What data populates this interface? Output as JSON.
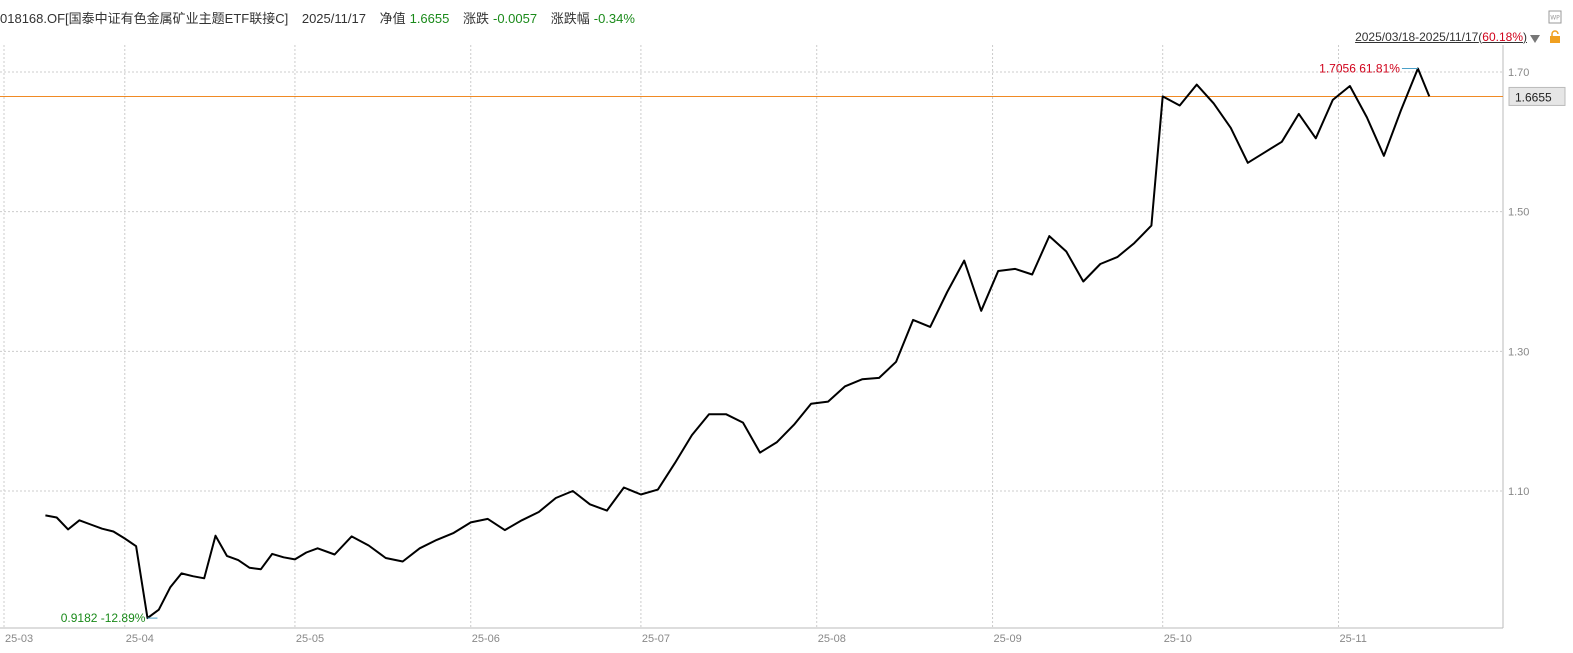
{
  "header": {
    "code_name": "018168.OF[国泰中证有色金属矿业主题ETF联接C]",
    "date": "2025/11/17",
    "nav_label": "净值",
    "nav_value": "1.6655",
    "change_label": "涨跌",
    "change_value": "-0.0057",
    "change_pct_label": "涨跌幅",
    "change_pct_value": "-0.34%"
  },
  "range": {
    "dates": "2025/03/18-2025/11/17",
    "pct_open": "(",
    "pct": "60.18%",
    "pct_close": ")"
  },
  "colors": {
    "line": "#000000",
    "ref_line": "#f08a24",
    "max_label": "#d0021b",
    "min_label": "#1a8a1a",
    "grid": "#cccccc"
  },
  "chart_data": {
    "type": "line",
    "x_tick_labels": [
      "25-03",
      "25-04",
      "25-05",
      "25-06",
      "25-07",
      "25-08",
      "25-09",
      "25-10",
      "25-11"
    ],
    "y_tick_labels": [
      "1.70",
      "1.50",
      "1.30",
      "1.10"
    ],
    "ylim": [
      0.9,
      1.75
    ],
    "current_value_label": "1.6655",
    "max_label": "1.7056 61.81%",
    "min_label": "0.9182 -12.89%",
    "grid": true,
    "series": [
      {
        "x": [
          "2025-03-18",
          "2025-03-20",
          "2025-03-22",
          "2025-03-24",
          "2025-03-26",
          "2025-03-28",
          "2025-03-30",
          "2025-04-01",
          "2025-04-03",
          "2025-04-05",
          "2025-04-07",
          "2025-04-09",
          "2025-04-11",
          "2025-04-13",
          "2025-04-15",
          "2025-04-17",
          "2025-04-19",
          "2025-04-21",
          "2025-04-23",
          "2025-04-25",
          "2025-04-27",
          "2025-04-29",
          "2025-05-01",
          "2025-05-03",
          "2025-05-05",
          "2025-05-08",
          "2025-05-11",
          "2025-05-14",
          "2025-05-17",
          "2025-05-20",
          "2025-05-23",
          "2025-05-26",
          "2025-05-29",
          "2025-06-01",
          "2025-06-04",
          "2025-06-07",
          "2025-06-10",
          "2025-06-13",
          "2025-06-16",
          "2025-06-19",
          "2025-06-22",
          "2025-06-25",
          "2025-06-28",
          "2025-07-01",
          "2025-07-04",
          "2025-07-07",
          "2025-07-10",
          "2025-07-13",
          "2025-07-16",
          "2025-07-19",
          "2025-07-22",
          "2025-07-25",
          "2025-07-28",
          "2025-07-31",
          "2025-08-03",
          "2025-08-06",
          "2025-08-09",
          "2025-08-12",
          "2025-08-15",
          "2025-08-18",
          "2025-08-21",
          "2025-08-24",
          "2025-08-27",
          "2025-08-30",
          "2025-09-02",
          "2025-09-05",
          "2025-09-08",
          "2025-09-11",
          "2025-09-14",
          "2025-09-17",
          "2025-09-20",
          "2025-09-23",
          "2025-09-26",
          "2025-09-29",
          "2025-10-01",
          "2025-10-04",
          "2025-10-07",
          "2025-10-10",
          "2025-10-13",
          "2025-10-16",
          "2025-10-19",
          "2025-10-22",
          "2025-10-25",
          "2025-10-28",
          "2025-10-31",
          "2025-11-03",
          "2025-11-06",
          "2025-11-09",
          "2025-11-12",
          "2025-11-15",
          "2025-11-17"
        ],
        "values": [
          1.065,
          1.062,
          1.045,
          1.058,
          1.052,
          1.046,
          1.042,
          1.032,
          1.021,
          0.918,
          0.93,
          0.962,
          0.982,
          0.978,
          0.975,
          1.036,
          1.007,
          1.001,
          0.99,
          0.988,
          1.01,
          1.005,
          1.002,
          1.012,
          1.018,
          1.009,
          1.035,
          1.022,
          1.004,
          0.999,
          1.018,
          1.03,
          1.04,
          1.055,
          1.06,
          1.044,
          1.058,
          1.07,
          1.09,
          1.1,
          1.081,
          1.072,
          1.105,
          1.095,
          1.102,
          1.14,
          1.18,
          1.21,
          1.21,
          1.198,
          1.155,
          1.17,
          1.195,
          1.225,
          1.228,
          1.25,
          1.26,
          1.262,
          1.285,
          1.345,
          1.335,
          1.385,
          1.43,
          1.358,
          1.415,
          1.418,
          1.41,
          1.465,
          1.443,
          1.4,
          1.425,
          1.435,
          1.455,
          1.48,
          1.665,
          1.652,
          1.682,
          1.655,
          1.62,
          1.57,
          1.585,
          1.6,
          1.64,
          1.605,
          1.66,
          1.68,
          1.635,
          1.58,
          1.645,
          1.705,
          1.665
        ]
      }
    ]
  }
}
